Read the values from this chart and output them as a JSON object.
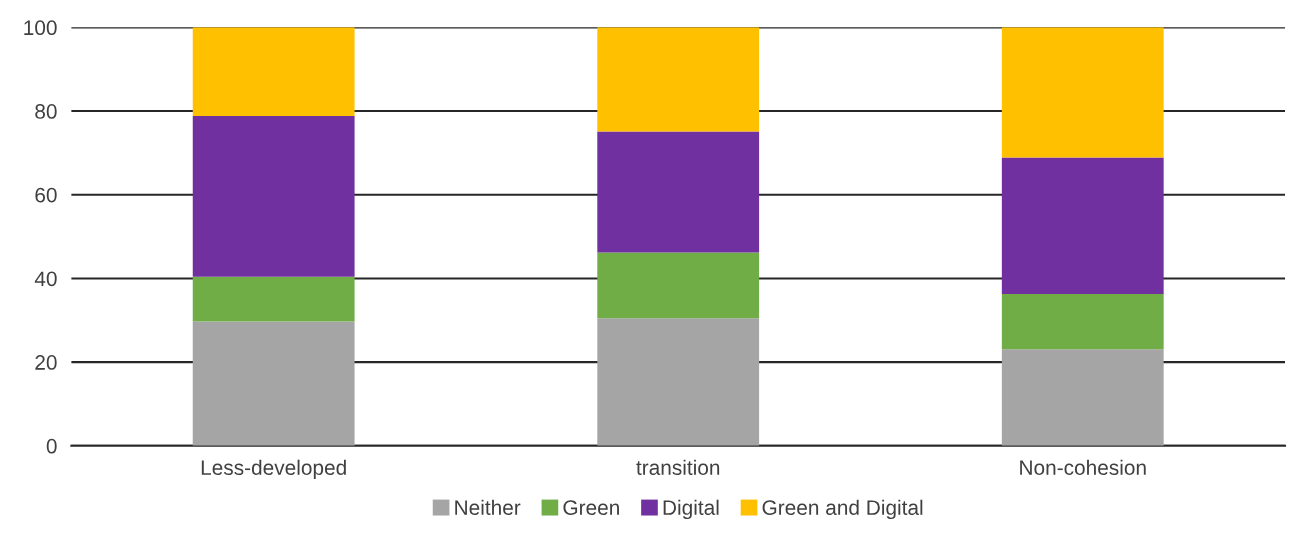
{
  "chart_data": {
    "type": "bar",
    "stacked": true,
    "categories": [
      "Less-developed",
      "transition",
      "Non-cohesion"
    ],
    "series": [
      {
        "name": "Neither",
        "color": "#a5a5a5",
        "values": [
          29.7,
          30.5,
          23.1
        ]
      },
      {
        "name": "Green",
        "color": "#70ad47",
        "values": [
          10.7,
          15.7,
          13.2
        ]
      },
      {
        "name": "Digital",
        "color": "#7030a0",
        "values": [
          38.4,
          28.9,
          32.6
        ]
      },
      {
        "name": "Green and Digital",
        "color": "#ffc000",
        "values": [
          21.2,
          24.9,
          31.1
        ]
      }
    ],
    "ylim": [
      0,
      100
    ],
    "yticks": [
      0,
      20,
      40,
      60,
      80,
      100
    ],
    "grid": "y",
    "legend": "bottom"
  }
}
